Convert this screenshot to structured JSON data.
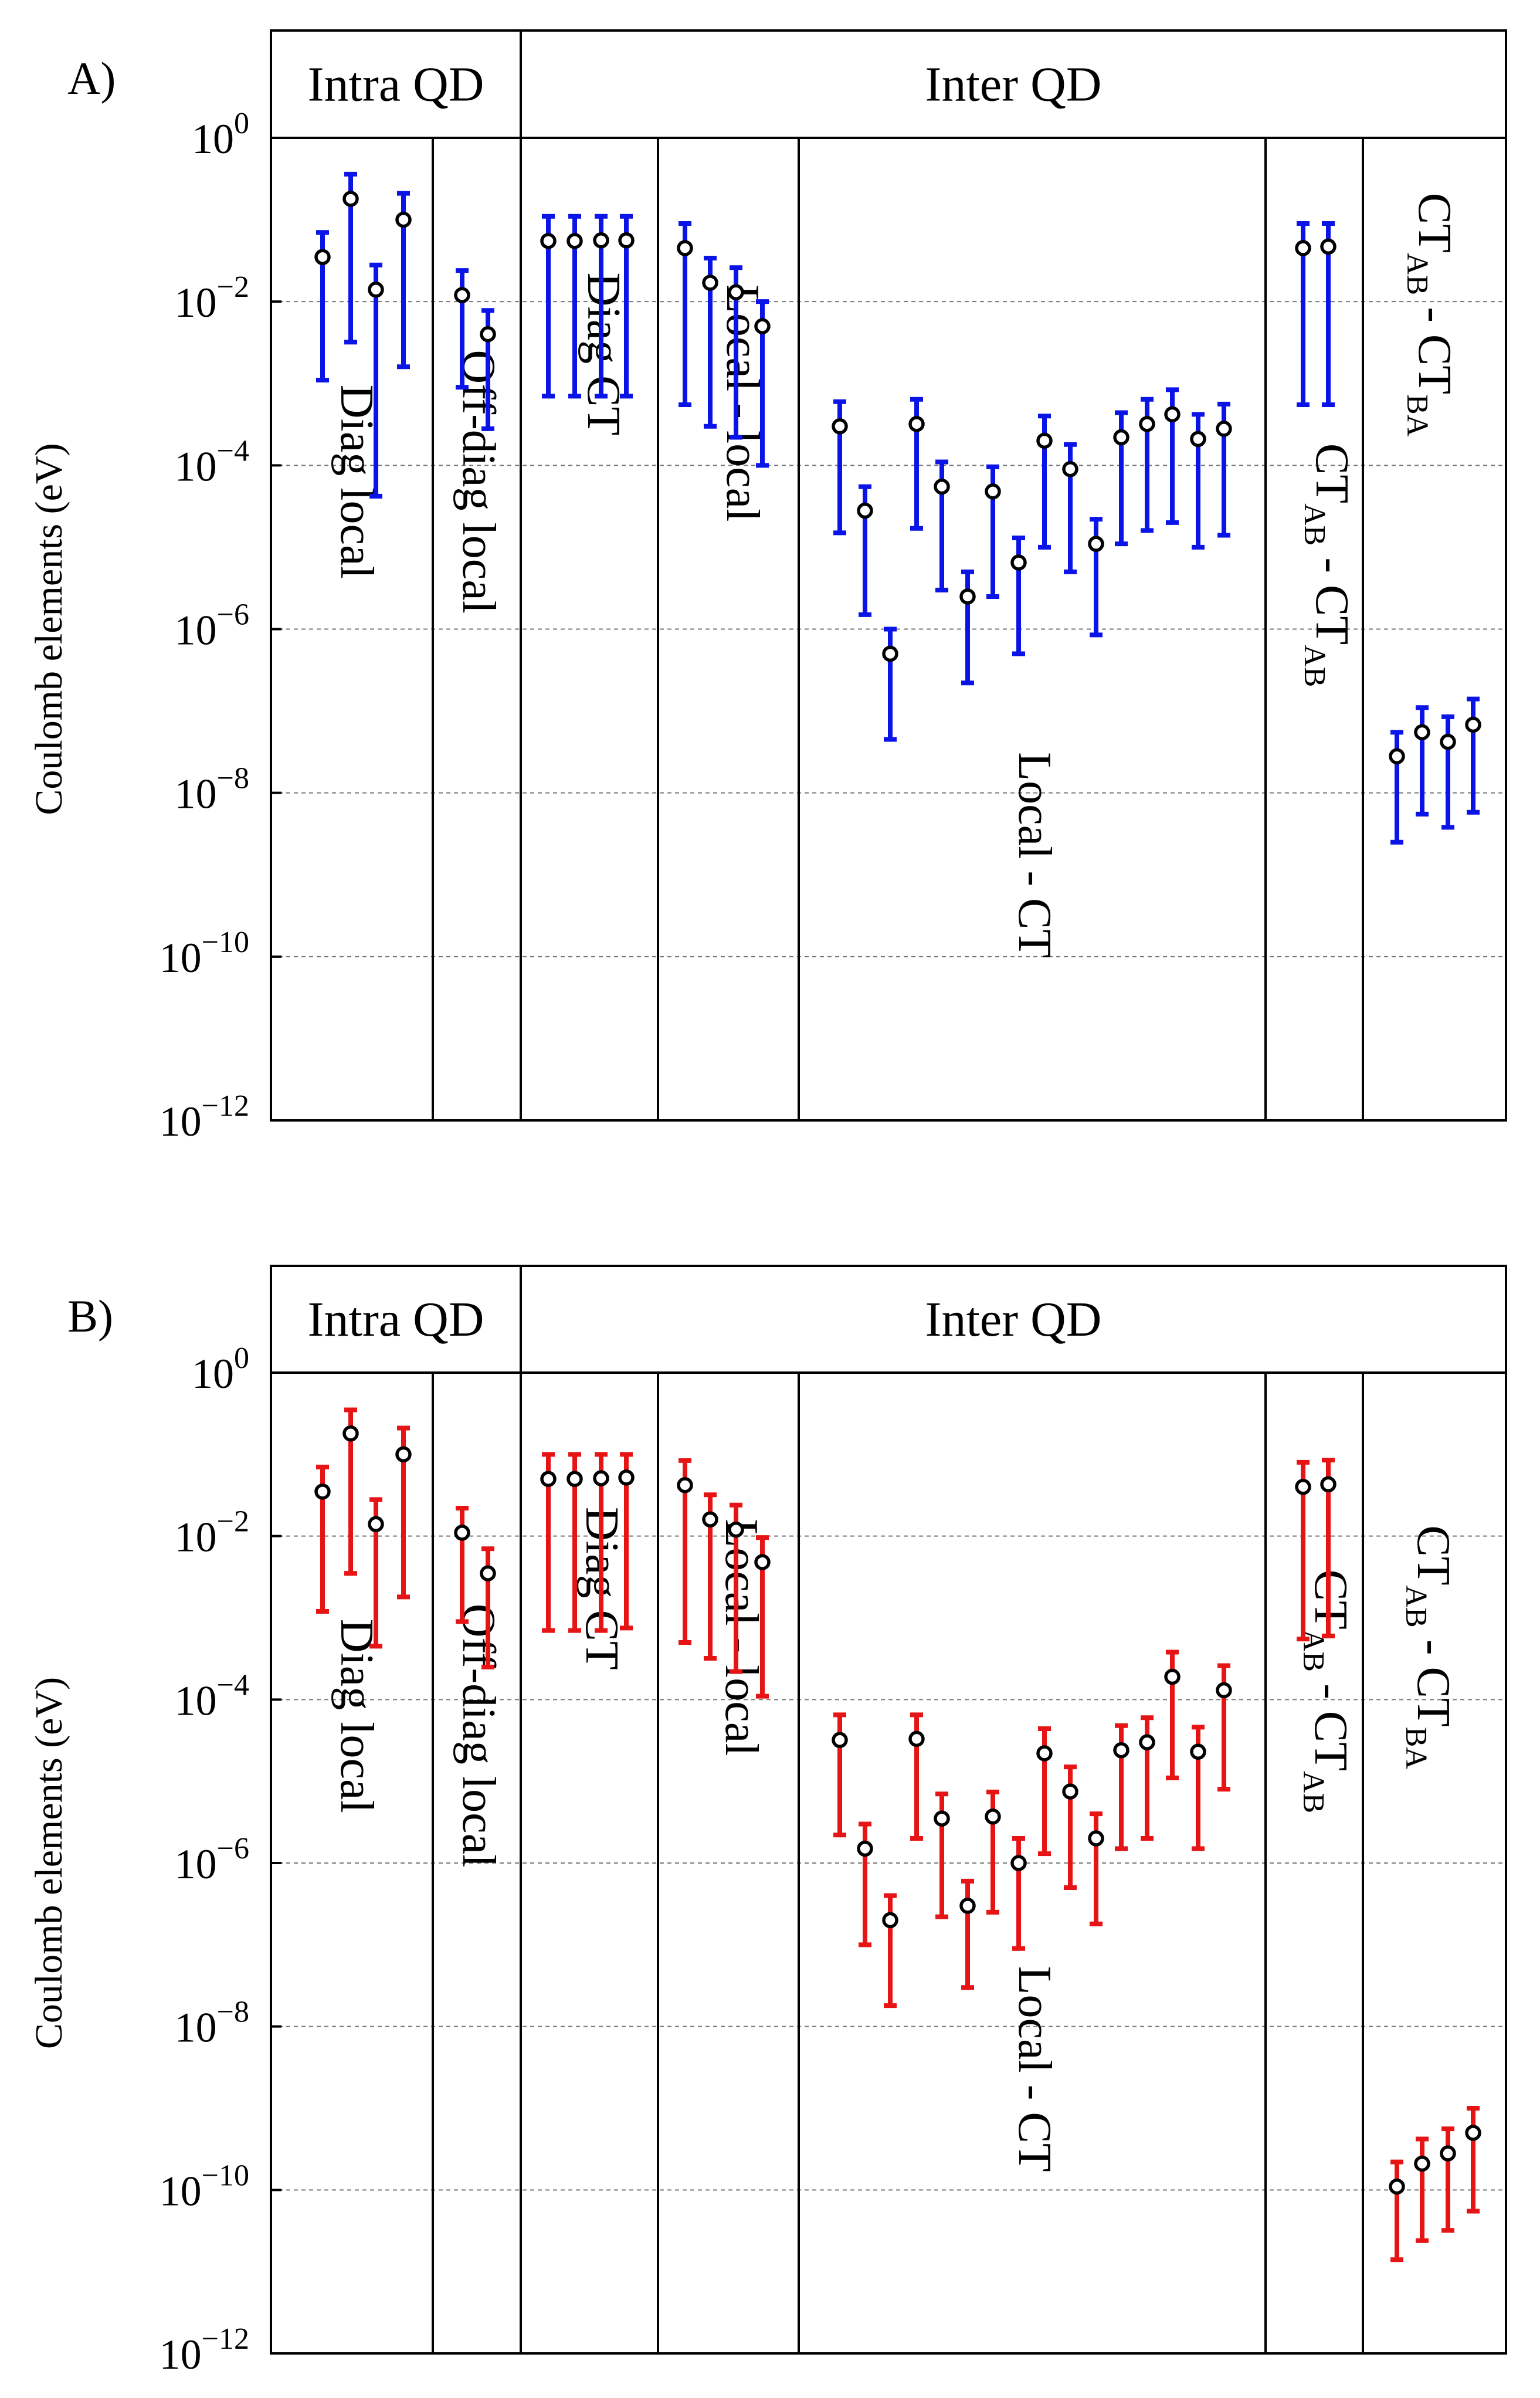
{
  "chart_data": [
    {
      "panel_label": "A)",
      "type": "scatter",
      "ylabel": "Coulomb elements (eV)",
      "y_scale": "log",
      "y_exponent_range": [
        -12,
        0
      ],
      "y_tick_base": "10",
      "y_ticks": [
        "0",
        "−2",
        "−4",
        "−6",
        "−8",
        "−10",
        "−12"
      ],
      "bar_color": "#0a14e6",
      "header_groups": [
        {
          "label": "Intra QD"
        },
        {
          "label": "Inter QD"
        }
      ],
      "categories": [
        {
          "label": "Diag local",
          "points": [
            {
              "value": 0.035,
              "low": 0.0011,
              "high": 0.07
            },
            {
              "value": 0.18,
              "low": 0.0032,
              "high": 0.36
            },
            {
              "value": 0.014,
              "low": 4.2e-05,
              "high": 0.028
            },
            {
              "value": 0.1,
              "low": 0.0016,
              "high": 0.21
            }
          ]
        },
        {
          "label": "Off-diag local",
          "points": [
            {
              "value": 0.012,
              "low": 0.0009,
              "high": 0.024
            },
            {
              "value": 0.004,
              "low": 0.00028,
              "high": 0.0078
            }
          ]
        },
        {
          "label": "Diag CT",
          "points": [
            {
              "value": 0.055,
              "low": 0.0007,
              "high": 0.11
            },
            {
              "value": 0.055,
              "low": 0.0007,
              "high": 0.11
            },
            {
              "value": 0.056,
              "low": 0.0007,
              "high": 0.11
            },
            {
              "value": 0.056,
              "low": 0.0007,
              "high": 0.11
            }
          ]
        },
        {
          "label": "Local - local",
          "points": [
            {
              "value": 0.045,
              "low": 0.00055,
              "high": 0.09
            },
            {
              "value": 0.017,
              "low": 0.0003,
              "high": 0.034
            },
            {
              "value": 0.013,
              "low": 0.00022,
              "high": 0.026
            },
            {
              "value": 0.005,
              "low": 0.0001,
              "high": 0.01
            }
          ]
        },
        {
          "label": "Local - CT",
          "points": [
            {
              "value": 0.0003,
              "low": 1.5e-05,
              "high": 0.0006
            },
            {
              "value": 2.8e-05,
              "low": 1.5e-06,
              "high": 5.5e-05
            },
            {
              "value": 5e-07,
              "low": 4.5e-08,
              "high": 1e-06
            },
            {
              "value": 0.00032,
              "low": 1.7e-05,
              "high": 0.00064
            },
            {
              "value": 5.5e-05,
              "low": 3e-06,
              "high": 0.00011
            },
            {
              "value": 2.5e-06,
              "low": 2.2e-07,
              "high": 5e-06
            },
            {
              "value": 4.8e-05,
              "low": 2.5e-06,
              "high": 9.6e-05
            },
            {
              "value": 6.5e-06,
              "low": 5e-07,
              "high": 1.3e-05
            },
            {
              "value": 0.0002,
              "low": 1e-05,
              "high": 0.0004
            },
            {
              "value": 9e-05,
              "low": 5e-06,
              "high": 0.00018
            },
            {
              "value": 1.1e-05,
              "low": 8.5e-07,
              "high": 2.2e-05
            },
            {
              "value": 0.00022,
              "low": 1.1e-05,
              "high": 0.00044
            },
            {
              "value": 0.00032,
              "low": 1.6e-05,
              "high": 0.00064
            },
            {
              "value": 0.00042,
              "low": 2e-05,
              "high": 0.00084
            },
            {
              "value": 0.00021,
              "low": 1e-05,
              "high": 0.00042
            },
            {
              "value": 0.00028,
              "low": 1.4e-05,
              "high": 0.00056
            }
          ]
        },
        {
          "label_main": "CT",
          "label_sub1": "AB",
          "label_mid": " - CT",
          "label_sub2": "AB",
          "points": [
            {
              "value": 0.045,
              "low": 0.00055,
              "high": 0.09
            },
            {
              "value": 0.047,
              "low": 0.00055,
              "high": 0.09
            }
          ]
        },
        {
          "label_main": "CT",
          "label_sub1": "AB",
          "label_mid": " - CT",
          "label_sub2": "BA",
          "points": [
            {
              "value": 2.8e-08,
              "low": 2.5e-09,
              "high": 5.5e-08
            },
            {
              "value": 5.5e-08,
              "low": 5.5e-09,
              "high": 1.1e-07
            },
            {
              "value": 4.2e-08,
              "low": 3.8e-09,
              "high": 8.5e-08
            },
            {
              "value": 6.8e-08,
              "low": 5.8e-09,
              "high": 1.4e-07
            }
          ]
        }
      ]
    },
    {
      "panel_label": "B)",
      "type": "scatter",
      "ylabel": "Coulomb elements (eV)",
      "y_scale": "log",
      "y_exponent_range": [
        -12,
        0
      ],
      "y_tick_base": "10",
      "y_ticks": [
        "0",
        "−2",
        "−4",
        "−6",
        "−8",
        "−10",
        "−12"
      ],
      "bar_color": "#e61414",
      "header_groups": [
        {
          "label": "Intra QD"
        },
        {
          "label": "Inter QD"
        }
      ],
      "categories": [
        {
          "label": "Diag local",
          "points": [
            {
              "value": 0.035,
              "low": 0.0012,
              "high": 0.07
            },
            {
              "value": 0.18,
              "low": 0.0035,
              "high": 0.35
            },
            {
              "value": 0.014,
              "low": 0.00045,
              "high": 0.028
            },
            {
              "value": 0.1,
              "low": 0.0018,
              "high": 0.21
            }
          ]
        },
        {
          "label": "Off-diag local",
          "points": [
            {
              "value": 0.011,
              "low": 0.0009,
              "high": 0.022
            },
            {
              "value": 0.0035,
              "low": 0.00025,
              "high": 0.007
            }
          ]
        },
        {
          "label": "Diag CT",
          "points": [
            {
              "value": 0.05,
              "low": 0.0007,
              "high": 0.1
            },
            {
              "value": 0.05,
              "low": 0.0007,
              "high": 0.1
            },
            {
              "value": 0.051,
              "low": 0.0007,
              "high": 0.1
            },
            {
              "value": 0.052,
              "low": 0.00075,
              "high": 0.1
            }
          ]
        },
        {
          "label": "Local - local",
          "points": [
            {
              "value": 0.042,
              "low": 0.0005,
              "high": 0.084
            },
            {
              "value": 0.016,
              "low": 0.00032,
              "high": 0.032
            },
            {
              "value": 0.012,
              "low": 0.00022,
              "high": 0.024
            },
            {
              "value": 0.0048,
              "low": 0.00011,
              "high": 0.0096
            }
          ]
        },
        {
          "label": "Local - CT",
          "points": [
            {
              "value": 3.2e-05,
              "low": 2.2e-06,
              "high": 6.5e-05
            },
            {
              "value": 1.5e-06,
              "low": 1e-07,
              "high": 3e-06
            },
            {
              "value": 2e-07,
              "low": 1.8e-08,
              "high": 4e-07
            },
            {
              "value": 3.3e-05,
              "low": 2e-06,
              "high": 6.5e-05
            },
            {
              "value": 3.5e-06,
              "low": 2.2e-07,
              "high": 7e-06
            },
            {
              "value": 3e-07,
              "low": 3e-08,
              "high": 6e-07
            },
            {
              "value": 3.7e-06,
              "low": 2.5e-07,
              "high": 7.4e-06
            },
            {
              "value": 1e-06,
              "low": 9e-08,
              "high": 2e-06
            },
            {
              "value": 2.2e-05,
              "low": 1.3e-06,
              "high": 4.4e-05
            },
            {
              "value": 7.5e-06,
              "low": 5e-07,
              "high": 1.5e-05
            },
            {
              "value": 2e-06,
              "low": 1.8e-07,
              "high": 4e-06
            },
            {
              "value": 2.4e-05,
              "low": 1.5e-06,
              "high": 4.8e-05
            },
            {
              "value": 3e-05,
              "low": 2e-06,
              "high": 6e-05
            },
            {
              "value": 0.00019,
              "low": 1.1e-05,
              "high": 0.00038
            },
            {
              "value": 2.3e-05,
              "low": 1.5e-06,
              "high": 4.6e-05
            },
            {
              "value": 0.00013,
              "low": 8e-06,
              "high": 0.00026
            }
          ]
        },
        {
          "label_main": "CT",
          "label_sub1": "AB",
          "label_mid": " - CT",
          "label_sub2": "AB",
          "points": [
            {
              "value": 0.04,
              "low": 0.00055,
              "high": 0.08
            },
            {
              "value": 0.043,
              "low": 0.0006,
              "high": 0.085
            }
          ]
        },
        {
          "label_main": "CT",
          "label_sub1": "AB",
          "label_mid": " - CT",
          "label_sub2": "BA",
          "points": [
            {
              "value": 1.1e-10,
              "low": 1.4e-11,
              "high": 2.2e-10
            },
            {
              "value": 2.1e-10,
              "low": 2.4e-11,
              "high": 4.2e-10
            },
            {
              "value": 2.8e-10,
              "low": 3.2e-11,
              "high": 5.6e-10
            },
            {
              "value": 5e-10,
              "low": 5.5e-11,
              "high": 1e-09
            }
          ]
        }
      ]
    }
  ]
}
